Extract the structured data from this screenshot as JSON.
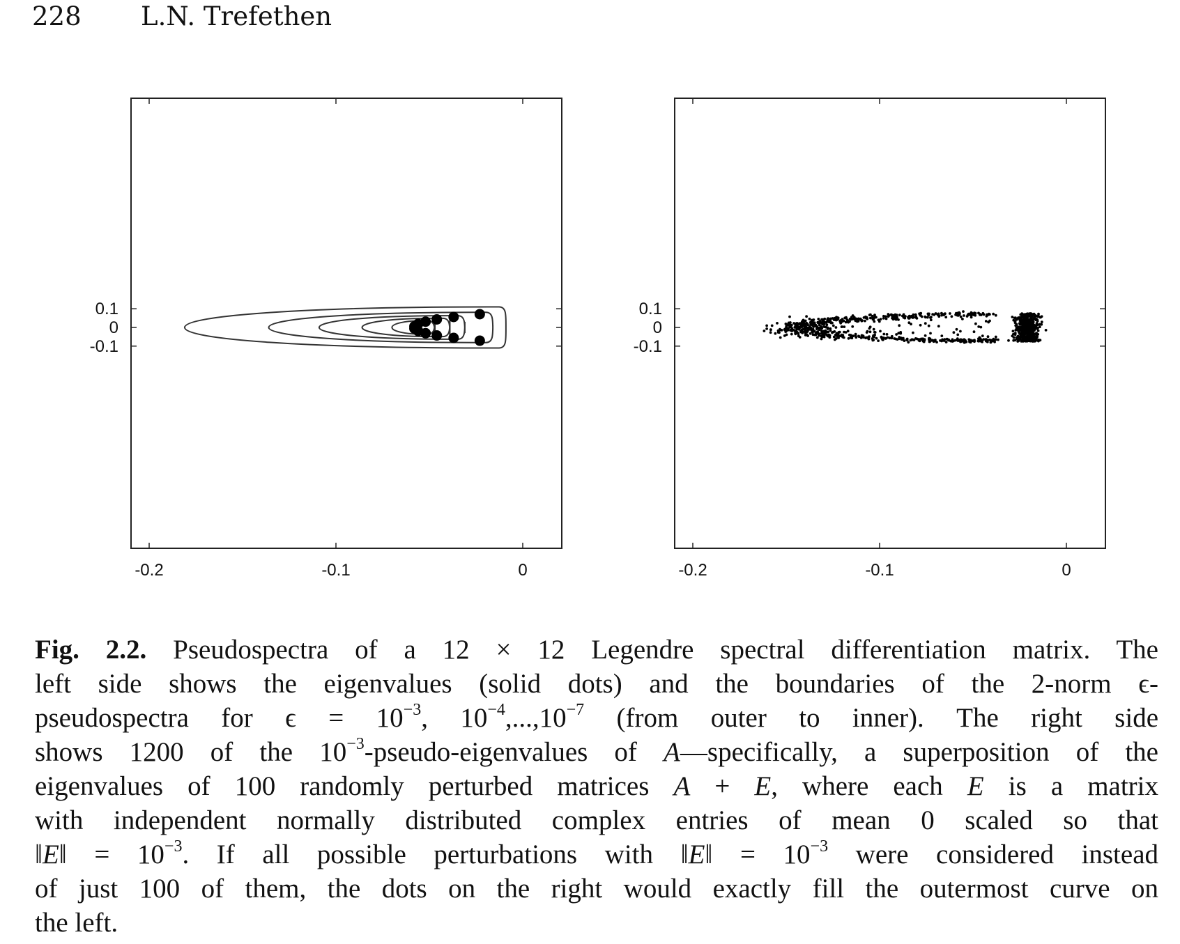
{
  "header": {
    "page_number": "228",
    "author": "L.N. Trefethen"
  },
  "chart_data": [
    {
      "type": "line",
      "panel": "left",
      "x_ticks": [
        "-0.2",
        "-0.1",
        "0"
      ],
      "y_ticks": [
        "0.1",
        "0",
        "-0.1"
      ],
      "xlim": [
        -0.21,
        0.02
      ],
      "ylim": [
        -0.12,
        0.12
      ],
      "grid": false,
      "series": [
        {
          "kind": "eigenvalues",
          "points": [
            [
              -0.023,
              0.071
            ],
            [
              -0.037,
              0.056
            ],
            [
              -0.046,
              0.043
            ],
            [
              -0.052,
              0.031
            ],
            [
              -0.056,
              0.019
            ],
            [
              -0.058,
              0.006
            ],
            [
              -0.058,
              -0.006
            ],
            [
              -0.056,
              -0.019
            ],
            [
              -0.052,
              -0.031
            ],
            [
              -0.046,
              -0.043
            ],
            [
              -0.037,
              -0.056
            ],
            [
              -0.023,
              -0.071
            ]
          ]
        },
        {
          "kind": "contour",
          "epsilon": "10^-3",
          "left": -0.181,
          "right": -0.009,
          "half_height": 0.11
        },
        {
          "kind": "contour",
          "epsilon": "10^-4",
          "left": -0.136,
          "right": -0.016,
          "half_height": 0.081
        },
        {
          "kind": "contour",
          "epsilon": "10^-5",
          "left": -0.109,
          "right": -0.031,
          "half_height": 0.063
        },
        {
          "kind": "contour",
          "epsilon": "10^-6",
          "left": -0.086,
          "right": -0.039,
          "half_height": 0.049
        },
        {
          "kind": "contour",
          "epsilon": "10^-7",
          "left": -0.07,
          "right": -0.047,
          "half_height": 0.035
        }
      ]
    },
    {
      "type": "scatter",
      "panel": "right",
      "x_ticks": [
        "-0.2",
        "-0.1",
        "0"
      ],
      "y_ticks": [
        "0.1",
        "0",
        "-0.1"
      ],
      "xlim": [
        -0.21,
        0.02
      ],
      "ylim": [
        -0.12,
        0.12
      ],
      "grid": false,
      "points_count": 1200,
      "distribution": "outermost contour region, dense along right edge near x = -0.02"
    }
  ],
  "caption": {
    "label": "Fig. 2.2.",
    "lines": [
      [
        "Pseudospectra of a 12 × 12 Legendre spectral differentiation matrix. The"
      ],
      [
        "left side shows the eigenvalues (solid dots) and the boundaries of the 2-norm ϵ-"
      ],
      [
        "pseudospectra for ϵ = 10",
        "−3",
        ", 10",
        "−4",
        ",...,10",
        "−7",
        " (from outer to inner). The right side"
      ],
      [
        "shows 1200 of the 10",
        "−3",
        "-pseudo-eigenvalues of ",
        "A",
        "—specifically, a superposition of the"
      ],
      [
        "eigenvalues of 100 randomly perturbed matrices ",
        "A",
        " + ",
        "E",
        ", where each ",
        "E",
        " is a matrix"
      ],
      [
        "with independent normally distributed complex entries of mean 0 scaled so that"
      ],
      [
        "‖",
        "E",
        "‖ = 10",
        "−3",
        ". If all possible perturbations with ‖",
        "E",
        "‖ = 10",
        "−3",
        " were considered instead"
      ],
      [
        "of just 100 of them, the dots on the right would exactly fill the outermost curve on"
      ],
      [
        "the left."
      ]
    ]
  }
}
